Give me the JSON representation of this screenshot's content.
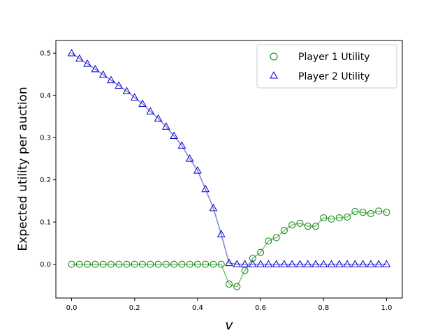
{
  "chart_data": {
    "type": "line",
    "xlabel": "v",
    "ylabel": "Expected utility per auction",
    "xlim": [
      -0.05,
      1.05
    ],
    "ylim": [
      -0.08,
      0.53
    ],
    "xticks": [
      "0.0",
      "0.2",
      "0.4",
      "0.6",
      "0.8",
      "1.0"
    ],
    "yticks": [
      "0.0",
      "0.1",
      "0.2",
      "0.3",
      "0.4",
      "0.5"
    ],
    "legend_position": "top-right",
    "grid": false,
    "x": [
      0.0,
      0.025,
      0.05,
      0.075,
      0.1,
      0.125,
      0.15,
      0.175,
      0.2,
      0.225,
      0.25,
      0.275,
      0.3,
      0.325,
      0.35,
      0.375,
      0.4,
      0.425,
      0.45,
      0.475,
      0.5,
      0.525,
      0.55,
      0.575,
      0.6,
      0.625,
      0.65,
      0.675,
      0.7,
      0.725,
      0.75,
      0.775,
      0.8,
      0.825,
      0.85,
      0.875,
      0.9,
      0.925,
      0.95,
      0.975,
      1.0
    ],
    "series": [
      {
        "name": "Player 1 Utility",
        "marker": "circle",
        "color": "#008000",
        "line_color": "#7fbf7f",
        "values": [
          0.0,
          0.0,
          0.0,
          0.0,
          0.0,
          0.0,
          0.0,
          0.0,
          0.0,
          0.0,
          0.0,
          0.0,
          0.0,
          0.0,
          0.0,
          0.0,
          0.0,
          0.0,
          0.0,
          0.0,
          -0.047,
          -0.053,
          -0.015,
          0.014,
          0.028,
          0.055,
          0.063,
          0.08,
          0.093,
          0.097,
          0.09,
          0.09,
          0.11,
          0.107,
          0.11,
          0.112,
          0.125,
          0.123,
          0.12,
          0.126,
          0.123
        ]
      },
      {
        "name": "Player 2 Utility",
        "marker": "triangle",
        "color": "#0000cc",
        "line_color": "#8080e0",
        "values": [
          0.5,
          0.487,
          0.475,
          0.462,
          0.449,
          0.436,
          0.423,
          0.41,
          0.395,
          0.38,
          0.362,
          0.345,
          0.326,
          0.304,
          0.281,
          0.25,
          0.222,
          0.178,
          0.133,
          0.071,
          0.003,
          0.0,
          0.0,
          0.0,
          0.0,
          0.0,
          0.0,
          0.0,
          0.0,
          0.0,
          0.0,
          0.0,
          0.0,
          0.0,
          0.0,
          0.0,
          0.0,
          0.0,
          0.0,
          0.0,
          0.0
        ]
      }
    ]
  }
}
